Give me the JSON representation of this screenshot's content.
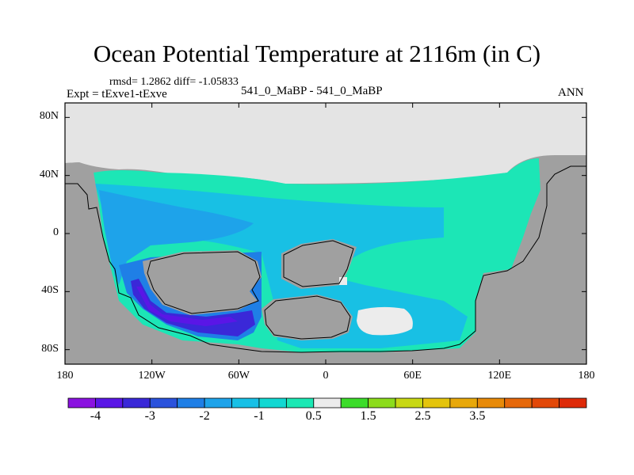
{
  "title": "Ocean Potential Temperature at 2116m (in C)",
  "stats_text": "rmsd= 1.2862 diff= -1.05833",
  "expt_text": "Expt = tExve1-tExve",
  "case_text": "541_0_MaBP - 541_0_MaBP",
  "season": "ANN",
  "lat_ticks": [
    {
      "label": "80N",
      "value": 80
    },
    {
      "label": "40N",
      "value": 40
    },
    {
      "label": "0",
      "value": 0
    },
    {
      "label": "40S",
      "value": -40
    },
    {
      "label": "80S",
      "value": -80
    }
  ],
  "lon_ticks": [
    {
      "label": "180",
      "value": -180
    },
    {
      "label": "120W",
      "value": -120
    },
    {
      "label": "60W",
      "value": -60
    },
    {
      "label": "0",
      "value": 0
    },
    {
      "label": "60E",
      "value": 60
    },
    {
      "label": "120E",
      "value": 120
    },
    {
      "label": "180",
      "value": 180
    }
  ],
  "colorbar": {
    "colors": [
      "#8a12e0",
      "#5a16e6",
      "#3a28d8",
      "#2a52dc",
      "#1f7fe6",
      "#1ea3ea",
      "#18c0e6",
      "#12d8d2",
      "#1ce8b4",
      "#ececec",
      "#3cdc2a",
      "#8cdc1c",
      "#c8d814",
      "#e4c40c",
      "#e8a80a",
      "#e88a08",
      "#e6680a",
      "#e24808",
      "#de2a08"
    ],
    "labels": [
      {
        "text": "-4",
        "after_box": 1
      },
      {
        "text": "-3",
        "after_box": 3
      },
      {
        "text": "-2",
        "after_box": 5
      },
      {
        "text": "-1",
        "after_box": 7
      },
      {
        "text": "0.5",
        "after_box": 9
      },
      {
        "text": "1.5",
        "after_box": 11
      },
      {
        "text": "2.5",
        "after_box": 13
      },
      {
        "text": "3.5",
        "after_box": 15
      }
    ]
  }
}
